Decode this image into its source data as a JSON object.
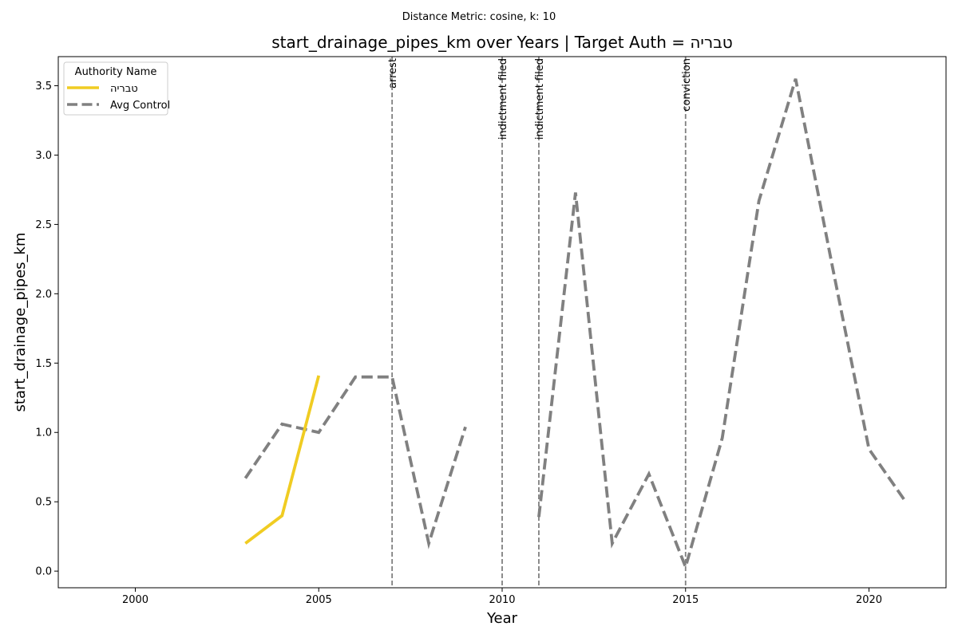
{
  "chart_data": {
    "type": "line",
    "suptitle": "Distance Metric: cosine, k: 10",
    "title": "start_drainage_pipes_km over Years | Target Auth = טבריה",
    "xlabel": "Year",
    "ylabel": "start_drainage_pipes_km",
    "xlim": [
      1997.9,
      2022.1
    ],
    "ylim": [
      -0.12,
      3.71
    ],
    "x_ticks": [
      2000,
      2005,
      2010,
      2015,
      2020
    ],
    "y_ticks": [
      0.0,
      0.5,
      1.0,
      1.5,
      2.0,
      2.5,
      3.0,
      3.5
    ],
    "x_tick_labels": [
      "2000",
      "2005",
      "2010",
      "2015",
      "2020"
    ],
    "y_tick_labels": [
      "0.0",
      "0.5",
      "1.0",
      "1.5",
      "2.0",
      "2.5",
      "3.0",
      "3.5"
    ],
    "grid": false,
    "legend": {
      "title": "Authority Name",
      "placement": "top-left"
    },
    "series": [
      {
        "name": "טבריה",
        "color": "#f0cc22",
        "style": "solid",
        "points": [
          [
            2003,
            0.2
          ],
          [
            2004,
            0.4
          ],
          [
            2005,
            1.41
          ]
        ]
      },
      {
        "name": "Avg Control",
        "color": "#808080",
        "style": "dashed",
        "segments": [
          [
            [
              2003,
              0.67
            ],
            [
              2004,
              1.06
            ],
            [
              2005,
              1.0
            ],
            [
              2006,
              1.4
            ],
            [
              2007,
              1.4
            ],
            [
              2008,
              0.2
            ],
            [
              2009,
              1.04
            ]
          ],
          [
            [
              2011,
              0.39
            ],
            [
              2012,
              2.73
            ],
            [
              2013,
              0.2
            ],
            [
              2014,
              0.7
            ],
            [
              2015,
              0.03
            ],
            [
              2016,
              0.96
            ],
            [
              2017,
              2.67
            ],
            [
              2018,
              3.55
            ],
            [
              2019,
              2.2
            ],
            [
              2020,
              0.88
            ],
            [
              2021,
              0.5
            ]
          ]
        ]
      }
    ],
    "events": [
      {
        "x": 2007,
        "label": "arrest"
      },
      {
        "x": 2010,
        "label": "indictment filed"
      },
      {
        "x": 2011,
        "label": "indictment filed"
      },
      {
        "x": 2015,
        "label": "conviction"
      }
    ]
  }
}
